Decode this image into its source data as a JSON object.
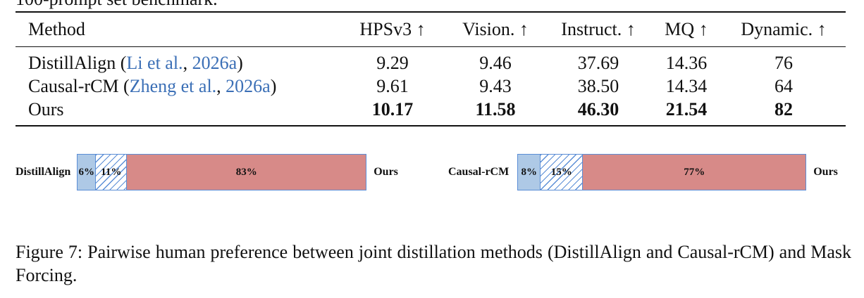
{
  "top_text": "100-prompt set benchmark.",
  "table": {
    "headers": [
      "Method",
      "HPSv3 ↑",
      "Vision. ↑",
      "Instruct. ↑",
      "MQ ↑",
      "Dynamic. ↑"
    ],
    "rows": [
      {
        "method": "DistillAlign",
        "cite_open": " (",
        "cite_author": "Li et al.",
        "cite_sep": ", ",
        "cite_year": "2026a",
        "cite_close": ")",
        "values": [
          "9.29",
          "9.46",
          "37.69",
          "14.36",
          "76"
        ]
      },
      {
        "method": "Causal-rCM",
        "cite_open": " (",
        "cite_author": "Zheng et al.",
        "cite_sep": ", ",
        "cite_year": "2026a",
        "cite_close": ")",
        "values": [
          "9.61",
          "9.43",
          "38.50",
          "14.34",
          "64"
        ]
      },
      {
        "method": "Ours",
        "values": [
          "10.17",
          "11.58",
          "46.30",
          "21.54",
          "82"
        ]
      }
    ],
    "link_color": "#3b6fb6"
  },
  "preference": [
    {
      "left_label": "DistillAlign",
      "right_label": "Ours",
      "segments": [
        {
          "pct": 6,
          "label": "6%",
          "kind": "baseline wins"
        },
        {
          "pct": 11,
          "label": "11%",
          "kind": "tie"
        },
        {
          "pct": 83,
          "label": "83%",
          "kind": "ours wins"
        }
      ]
    },
    {
      "left_label": "Causal-rCM",
      "right_label": "Ours",
      "segments": [
        {
          "pct": 8,
          "label": "8%",
          "kind": "baseline wins"
        },
        {
          "pct": 15,
          "label": "15%",
          "kind": "tie"
        },
        {
          "pct": 77,
          "label": "77%",
          "kind": "ours wins"
        }
      ]
    }
  ],
  "colors": {
    "baseline_wins": "#aec9e6",
    "tie_hatch": "#5b8ed6",
    "ours_wins": "#d78a88"
  },
  "caption": "Figure 7: Pairwise human preference between joint distillation methods (DistillAlign and Causal-rCM) and Mask Forcing."
}
